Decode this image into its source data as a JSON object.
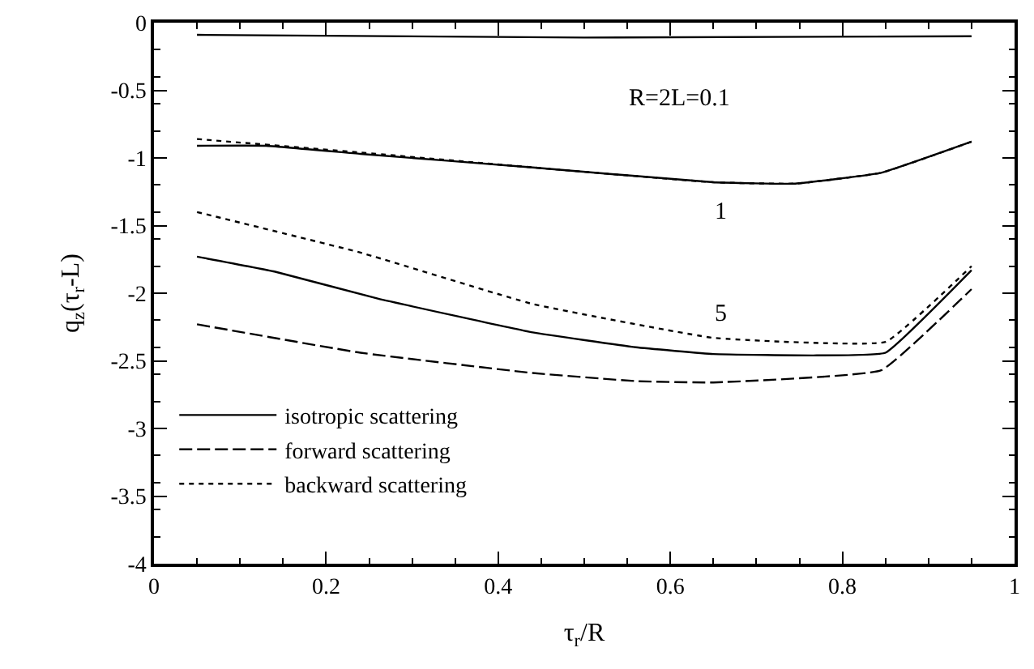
{
  "chart_data": {
    "type": "line",
    "xlabel": "τ$_{r}$/R",
    "ylabel": "q$_{z}$(τ$_{r}$-L)",
    "xlim": [
      0,
      1
    ],
    "xticks": [
      0,
      0.2,
      0.4,
      0.6,
      0.8,
      1
    ],
    "ylim": [
      -4,
      0
    ],
    "yticks": [
      0,
      -0.5,
      -1,
      -1.5,
      -2,
      -2.5,
      -3,
      -3.5,
      -4
    ],
    "legend": "bottom left",
    "marker": "none",
    "annotations": [
      "R=2L=0.1",
      "1",
      "5"
    ],
    "series": [
      {
        "name": "isotropic scattering",
        "color": "#000000",
        "line_style": "solid",
        "x": [
          0.05,
          0.14,
          0.26,
          0.44,
          0.56,
          0.65,
          0.77,
          0.85,
          0.95
        ],
        "values": [
          -1.73,
          -1.84,
          -2.04,
          -2.29,
          -2.4,
          -2.45,
          -2.46,
          -2.44,
          -1.83
        ]
      },
      {
        "name": "forward scattering",
        "color": "#000000",
        "line_style": "dashed",
        "x": [
          0.05,
          0.24,
          0.44,
          0.56,
          0.65,
          0.845,
          0.95
        ],
        "values": [
          -2.23,
          -2.44,
          -2.59,
          -2.65,
          -2.66,
          -2.57,
          -1.97
        ]
      },
      {
        "name": "backward scattering",
        "color": "#000000",
        "line_style": "dotted",
        "x": [
          0.05,
          0.24,
          0.44,
          0.65,
          0.85,
          0.95
        ],
        "values": [
          -1.4,
          -1.7,
          -2.08,
          -2.33,
          -2.36,
          -1.8
        ]
      },
      {
        "color": "#000000",
        "line_style": "solid",
        "x": [
          0.05,
          0.5,
          0.95
        ],
        "values": [
          -0.09,
          -0.11,
          -0.1
        ]
      },
      {
        "color": "#000000",
        "line_style": "solid",
        "x": [
          0.05,
          0.13,
          0.24,
          0.44,
          0.65,
          0.745,
          0.845,
          0.95
        ],
        "values": [
          -0.91,
          -0.91,
          -0.97,
          -1.07,
          -1.18,
          -1.19,
          -1.11,
          -0.88
        ]
      },
      {
        "color": "#000000",
        "line_style": "dotted",
        "x": [
          0.05,
          0.24,
          0.44,
          0.65,
          0.745,
          0.845,
          0.95
        ],
        "values": [
          -0.86,
          -0.96,
          -1.07,
          -1.18,
          -1.19,
          -1.11,
          -0.88
        ]
      }
    ]
  }
}
